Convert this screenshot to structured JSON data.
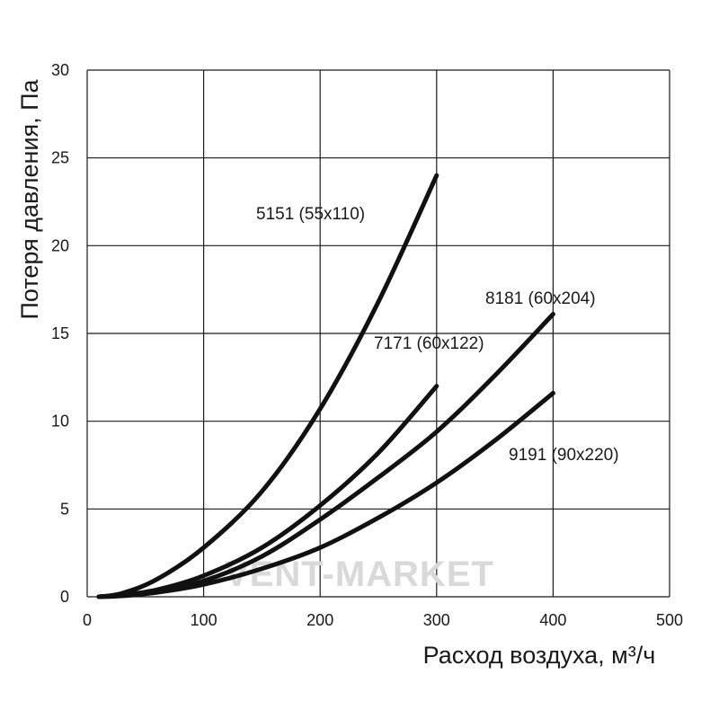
{
  "chart_data": {
    "type": "line",
    "xlabel": "Расход воздуха, м³/ч",
    "ylabel": "Потеря давления, Па",
    "xlim": [
      0,
      500
    ],
    "ylim": [
      0,
      30
    ],
    "xticks": [
      0,
      100,
      200,
      300,
      400,
      500
    ],
    "yticks": [
      0,
      5,
      10,
      15,
      20,
      25,
      30
    ],
    "grid": true,
    "colors": {
      "line": "#111111",
      "grid": "#1a1a1a",
      "watermark": "#d9d9d9"
    },
    "series": [
      {
        "name": "5151 (55x110)",
        "x": [
          10,
          30,
          60,
          100,
          150,
          200,
          250,
          300
        ],
        "y": [
          0,
          0.2,
          1.0,
          2.8,
          6.0,
          10.7,
          16.8,
          24.0
        ]
      },
      {
        "name": "7171 (60x122)",
        "x": [
          10,
          30,
          60,
          100,
          150,
          200,
          250,
          300
        ],
        "y": [
          0,
          0.1,
          0.4,
          1.2,
          2.8,
          5.2,
          8.2,
          12.0
        ]
      },
      {
        "name": "8181 (60x204)",
        "x": [
          10,
          30,
          60,
          100,
          150,
          200,
          250,
          300,
          350,
          400
        ],
        "y": [
          0,
          0.1,
          0.35,
          0.9,
          2.3,
          4.4,
          6.8,
          9.4,
          12.6,
          16.1
        ]
      },
      {
        "name": "9191 (90x220)",
        "x": [
          10,
          30,
          60,
          100,
          150,
          200,
          250,
          300,
          350,
          400
        ],
        "y": [
          0,
          0.05,
          0.25,
          0.7,
          1.6,
          2.8,
          4.5,
          6.5,
          8.9,
          11.6
        ]
      }
    ]
  },
  "watermark": "VENT-MARKET"
}
